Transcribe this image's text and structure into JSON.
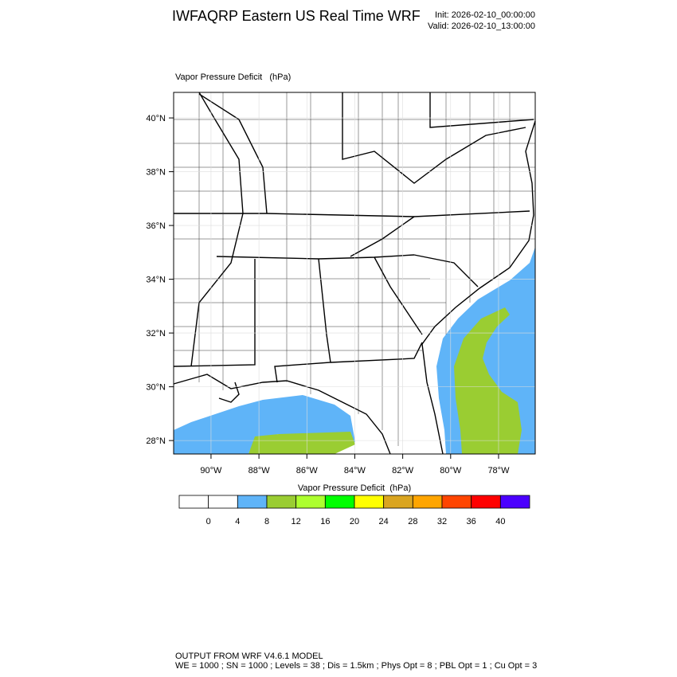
{
  "header": {
    "title": "IWFAQRP Eastern US Real Time WRF",
    "init": "Init: 2026-02-10_00:00:00",
    "valid": "Valid: 2026-02-10_13:00:00"
  },
  "map": {
    "label": "Vapor Pressure Deficit   (hPa)",
    "lon_range": [
      -91.56,
      -76.47
    ],
    "lat_range": [
      27.5,
      40.95
    ],
    "lat_ticks": [
      {
        "value": 40,
        "label": "40°N"
      },
      {
        "value": 38,
        "label": "38°N"
      },
      {
        "value": 36,
        "label": "36°N"
      },
      {
        "value": 34,
        "label": "34°N"
      },
      {
        "value": 32,
        "label": "32°N"
      },
      {
        "value": 30,
        "label": "30°N"
      },
      {
        "value": 28,
        "label": "28°N"
      }
    ],
    "lon_ticks": [
      {
        "value": -90,
        "label": "90°W"
      },
      {
        "value": -88,
        "label": "88°W"
      },
      {
        "value": -86,
        "label": "86°W"
      },
      {
        "value": -84,
        "label": "84°W"
      },
      {
        "value": -82,
        "label": "82°W"
      },
      {
        "value": -80,
        "label": "80°W"
      },
      {
        "value": -78,
        "label": "78°W"
      }
    ]
  },
  "colorbar": {
    "title": "Vapor Pressure Deficit  (hPa)",
    "colors": [
      "#ffffff",
      "#ffffff",
      "#5fb4f8",
      "#9acd32",
      "#adff2f",
      "#00ff00",
      "#ffff00",
      "#daa520",
      "#ffa500",
      "#ff4500",
      "#ff0000",
      "#4b00ff"
    ],
    "levels": [
      0,
      4,
      8,
      12,
      16,
      20,
      24,
      28,
      32,
      36,
      40
    ]
  },
  "footer": {
    "line1": "OUTPUT FROM WRF V4.6.1 MODEL",
    "line2": "WE = 1000 ; SN = 1000 ; Levels = 38 ; Dis = 1.5km ; Phys Opt = 8 ; PBL Opt = 1 ; Cu Opt = 3"
  }
}
